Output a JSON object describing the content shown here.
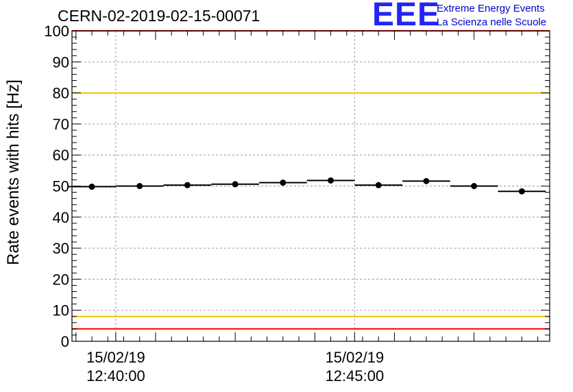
{
  "header": {
    "title": "CERN-02-2019-02-15-00071",
    "logo_text": "EEE",
    "brand_line1": "Extreme Energy Events",
    "brand_line2": "La Scienza nelle Scuole"
  },
  "colors": {
    "logo": "#2424f5",
    "brand_text": "#0000cc",
    "limit_red": "#ff0000",
    "limit_yellow": "#f2c200",
    "data": "#000000",
    "grid": "#9a9a9a"
  },
  "chart_data": {
    "type": "scatter",
    "title": "CERN-02-2019-02-15-00071",
    "ylabel": "Rate events with hits [Hz]",
    "xlabel": "",
    "ylim": [
      0,
      100
    ],
    "y_ticks": [
      "0",
      "10",
      "20",
      "30",
      "40",
      "50",
      "60",
      "70",
      "80",
      "90",
      "100"
    ],
    "x_axis": {
      "type": "time",
      "start": "15/02/19 12:39:05",
      "end": "15/02/19 12:49:05",
      "labeled_ticks": [
        {
          "time": "12:40:00",
          "date_label": "15/02/19",
          "time_label": "12:40:00"
        },
        {
          "time": "12:45:00",
          "date_label": "15/02/19",
          "time_label": "12:45:00"
        }
      ]
    },
    "grid": true,
    "series": [
      {
        "x": [
          "12:39:30",
          "12:40:30",
          "12:41:30",
          "12:42:30",
          "12:43:30",
          "12:44:30",
          "12:45:30",
          "12:46:30",
          "12:47:30",
          "12:48:30"
        ],
        "values": [
          49.8,
          50.0,
          50.3,
          50.6,
          51.1,
          51.8,
          50.3,
          51.6,
          50.0,
          48.3
        ],
        "x_error_seconds": 30
      }
    ],
    "reference_lines": [
      {
        "value": 100,
        "color": "red"
      },
      {
        "value": 80,
        "color": "yellow"
      },
      {
        "value": 8,
        "color": "yellow"
      },
      {
        "value": 4,
        "color": "red"
      }
    ]
  }
}
